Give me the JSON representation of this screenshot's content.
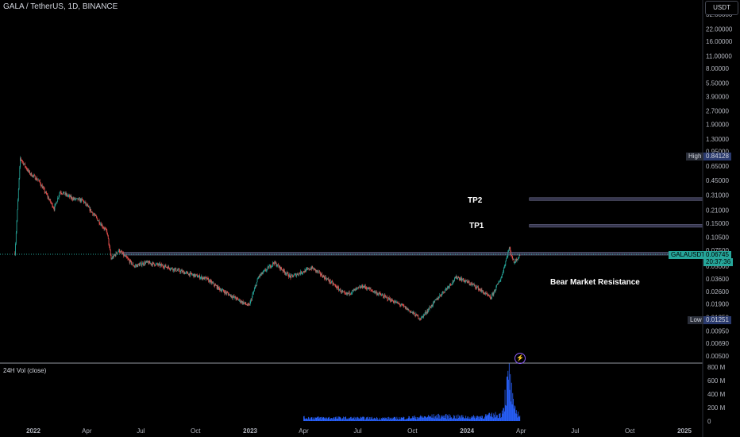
{
  "header": {
    "title": "GALA / TetherUS, 1D, BINANCE",
    "currency": "USDT"
  },
  "volume_title": "24H Vol (close)",
  "annotations": {
    "tp2": "TP2",
    "tp1": "TP1",
    "resistance": "Bear Market Resistance"
  },
  "tags": {
    "high_label": "High",
    "high_value": "0.84128",
    "symbol": "GALAUSDT",
    "last_price": "0.06745",
    "countdown": "20:37:36",
    "low_label": "Low",
    "low_value": "0.01251"
  },
  "icons": {
    "flash": "lightning-icon"
  },
  "colors": {
    "background": "#000000",
    "up": "#26a69a",
    "down": "#ef5350",
    "volume": "#2962ff",
    "resistance_zone": "#4a4a66",
    "last_price_bg": "#26a69a"
  },
  "chart_data": {
    "type": "candlestick",
    "title": "GALA / TetherUS, 1D, BINANCE",
    "y_scale": "log",
    "y_ticks": [
      "32.00000",
      "22.00000",
      "16.00000",
      "11.00000",
      "8.00000",
      "5.50000",
      "3.90000",
      "2.70000",
      "1.90000",
      "1.30000",
      "0.95000",
      "0.65000",
      "0.45000",
      "0.31000",
      "0.21000",
      "0.15000",
      "0.10500",
      "0.07500",
      "0.05000",
      "0.03600",
      "0.02600",
      "0.01900",
      "0.01350",
      "0.00950",
      "0.00690",
      "0.00500"
    ],
    "x_ticks": [
      "2022",
      "Apr",
      "Jul",
      "Oct",
      "2023",
      "Apr",
      "Jul",
      "Oct",
      "2024",
      "Apr",
      "Jul",
      "Oct",
      "2025"
    ],
    "price_path": [
      [
        "2021-12-01",
        0.07
      ],
      [
        "2021-12-10",
        0.8
      ],
      [
        "2021-12-25",
        0.55
      ],
      [
        "2022-01-10",
        0.45
      ],
      [
        "2022-02-05",
        0.22
      ],
      [
        "2022-02-15",
        0.34
      ],
      [
        "2022-03-10",
        0.28
      ],
      [
        "2022-03-25",
        0.27
      ],
      [
        "2022-04-15",
        0.18
      ],
      [
        "2022-05-05",
        0.12
      ],
      [
        "2022-05-12",
        0.06
      ],
      [
        "2022-05-25",
        0.075
      ],
      [
        "2022-06-20",
        0.05
      ],
      [
        "2022-07-10",
        0.055
      ],
      [
        "2022-08-10",
        0.05
      ],
      [
        "2022-09-15",
        0.042
      ],
      [
        "2022-10-20",
        0.036
      ],
      [
        "2022-11-10",
        0.028
      ],
      [
        "2022-12-30",
        0.018
      ],
      [
        "2023-01-15",
        0.038
      ],
      [
        "2023-02-10",
        0.055
      ],
      [
        "2023-03-10",
        0.038
      ],
      [
        "2023-04-15",
        0.048
      ],
      [
        "2023-05-15",
        0.034
      ],
      [
        "2023-06-10",
        0.024
      ],
      [
        "2023-07-10",
        0.03
      ],
      [
        "2023-08-20",
        0.022
      ],
      [
        "2023-09-15",
        0.018
      ],
      [
        "2023-10-15",
        0.013
      ],
      [
        "2023-11-15",
        0.023
      ],
      [
        "2023-12-15",
        0.038
      ],
      [
        "2024-01-15",
        0.03
      ],
      [
        "2024-02-10",
        0.022
      ],
      [
        "2024-02-28",
        0.038
      ],
      [
        "2024-03-12",
        0.08
      ],
      [
        "2024-03-20",
        0.055
      ],
      [
        "2024-03-30",
        0.067
      ]
    ],
    "volume_ticks": [
      "800 M",
      "600 M",
      "400 M",
      "200 M",
      "0"
    ],
    "volume_path": [
      [
        "2023-04-01",
        60
      ],
      [
        "2023-09-01",
        50
      ],
      [
        "2023-11-15",
        90
      ],
      [
        "2024-01-10",
        70
      ],
      [
        "2024-02-28",
        120
      ],
      [
        "2024-03-12",
        780
      ],
      [
        "2024-03-20",
        200
      ],
      [
        "2024-03-30",
        110
      ]
    ],
    "zones": [
      {
        "name": "TP2",
        "from": "2024-04-15",
        "to": "2025-03-31",
        "low": 0.27,
        "high": 0.29
      },
      {
        "name": "TP1",
        "from": "2024-04-15",
        "to": "2025-03-31",
        "low": 0.136,
        "high": 0.146
      },
      {
        "name": "Bear Market Resistance",
        "from": "2022-06-01",
        "to": "2025-03-31",
        "low": 0.0665,
        "high": 0.0715
      }
    ],
    "high": 0.84128,
    "low": 0.01251,
    "last": 0.06745
  }
}
